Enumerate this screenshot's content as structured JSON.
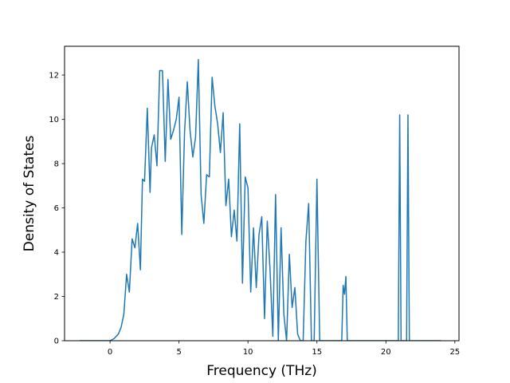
{
  "chart_data": {
    "type": "line",
    "title": "",
    "xlabel": "Frequency (THz)",
    "ylabel": "Density of States",
    "xlim": [
      -3.3,
      25.3
    ],
    "ylim": [
      0,
      13.3
    ],
    "xticks": [
      0,
      5,
      10,
      15,
      20,
      25
    ],
    "yticks": [
      0,
      2,
      4,
      6,
      8,
      10,
      12
    ],
    "grid": false,
    "color": "#1f77b4",
    "series": [
      {
        "x": [
          -2.2,
          -1.5,
          -1.0,
          -0.5,
          0.0,
          0.3,
          0.6,
          0.8,
          1.0,
          1.2,
          1.4,
          1.6,
          1.8,
          2.0,
          2.2,
          2.35,
          2.5,
          2.7,
          2.9,
          3.0,
          3.2,
          3.4,
          3.6,
          3.8,
          4.0,
          4.2,
          4.4,
          4.6,
          4.8,
          5.0,
          5.2,
          5.4,
          5.6,
          5.8,
          6.0,
          6.2,
          6.4,
          6.6,
          6.8,
          7.0,
          7.2,
          7.4,
          7.6,
          7.8,
          8.0,
          8.2,
          8.4,
          8.6,
          8.8,
          9.0,
          9.2,
          9.4,
          9.6,
          9.8,
          10.0,
          10.2,
          10.4,
          10.6,
          10.8,
          11.0,
          11.2,
          11.4,
          11.6,
          11.8,
          12.0,
          12.2,
          12.4,
          12.6,
          12.8,
          13.0,
          13.2,
          13.4,
          13.6,
          13.8,
          14.0,
          14.2,
          14.4,
          14.6,
          14.8,
          15.0,
          15.2,
          16.8,
          16.9,
          17.0,
          17.1,
          17.2,
          17.3,
          20.9,
          21.0,
          21.1,
          21.5,
          21.6,
          21.7,
          24.0
        ],
        "y": [
          0,
          0,
          0,
          0,
          0,
          0.1,
          0.3,
          0.6,
          1.2,
          3.0,
          2.2,
          4.6,
          4.2,
          5.3,
          3.2,
          7.3,
          7.2,
          10.5,
          6.7,
          8.7,
          9.3,
          7.9,
          12.2,
          12.2,
          8.1,
          11.8,
          9.1,
          9.5,
          10.0,
          11.0,
          4.8,
          9.4,
          11.7,
          9.5,
          8.3,
          9.2,
          12.7,
          6.6,
          5.3,
          7.5,
          7.4,
          11.9,
          10.6,
          9.8,
          8.5,
          10.3,
          6.1,
          7.3,
          4.7,
          5.9,
          4.5,
          9.8,
          2.6,
          7.4,
          6.9,
          2.2,
          5.1,
          2.4,
          4.8,
          5.6,
          1.0,
          5.4,
          3.2,
          0.2,
          6.6,
          0,
          5.1,
          1.2,
          0,
          3.9,
          1.5,
          2.4,
          0.3,
          0,
          0,
          4.5,
          6.2,
          0,
          0,
          7.3,
          0,
          0,
          2.5,
          2.1,
          2.9,
          0,
          0,
          0,
          10.2,
          0,
          0,
          10.2,
          0,
          0
        ]
      }
    ]
  }
}
